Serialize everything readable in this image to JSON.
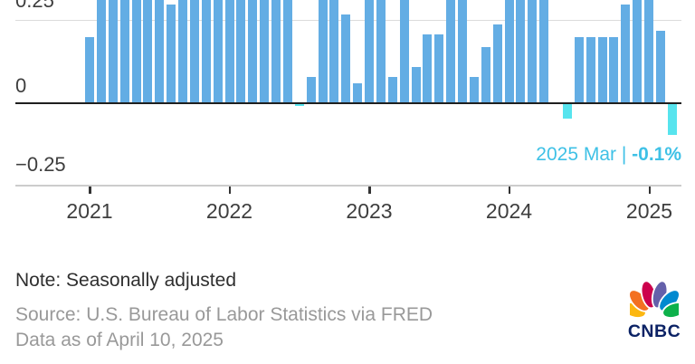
{
  "chart": {
    "y_axis": {
      "labels": [
        "0.25",
        "0",
        "−0.25"
      ]
    },
    "x_axis": {
      "years": [
        "2021",
        "2022",
        "2023",
        "2024",
        "2025"
      ]
    },
    "annotation": {
      "prefix": "2025 Mar | ",
      "value": "-0.1%"
    },
    "colors": {
      "bar_positive": "#63ade4",
      "bar_negative": "#57e4ee",
      "annotation_text": "#3fc1e6",
      "zero_axis": "#1f1f1f",
      "gridline": "#dcdcdc",
      "axis_label_text": "#3e3e3e"
    }
  },
  "chart_data": {
    "type": "bar",
    "x": [
      "2021-01",
      "2021-02",
      "2021-03",
      "2021-04",
      "2021-05",
      "2021-06",
      "2021-07",
      "2021-08",
      "2021-09",
      "2021-10",
      "2021-11",
      "2021-12",
      "2022-01",
      "2022-02",
      "2022-03",
      "2022-04",
      "2022-05",
      "2022-06",
      "2022-07",
      "2022-08",
      "2022-09",
      "2022-10",
      "2022-11",
      "2022-12",
      "2023-01",
      "2023-02",
      "2023-03",
      "2023-04",
      "2023-05",
      "2023-06",
      "2023-07",
      "2023-08",
      "2023-09",
      "2023-10",
      "2023-11",
      "2023-12",
      "2024-01",
      "2024-02",
      "2024-03",
      "2024-04",
      "2024-05",
      "2024-06",
      "2024-07",
      "2024-08",
      "2024-09",
      "2024-10",
      "2024-11",
      "2024-12",
      "2025-01",
      "2025-02",
      "2025-03"
    ],
    "values": [
      0.2,
      0.4,
      0.6,
      0.6,
      0.7,
      0.9,
      0.5,
      0.3,
      0.4,
      0.9,
      0.7,
      0.6,
      0.6,
      0.7,
      1.2,
      0.4,
      0.9,
      1.2,
      -0.01,
      0.08,
      0.4,
      0.5,
      0.27,
      0.06,
      0.5,
      0.4,
      0.08,
      0.5,
      0.11,
      0.21,
      0.21,
      0.5,
      0.4,
      0.08,
      0.17,
      0.24,
      0.5,
      0.4,
      0.4,
      0.4,
      0.0,
      -0.05,
      0.2,
      0.2,
      0.2,
      0.2,
      0.3,
      0.4,
      0.5,
      0.22,
      -0.1
    ],
    "unit": "%",
    "gridlines": [
      0.25,
      0,
      -0.25
    ],
    "visible_ylim": [
      -0.28,
      0.32
    ],
    "xlabel": "",
    "ylabel": "",
    "last_point_label": "2025 Mar | -0.1%",
    "negative_bars_highlighted": true
  },
  "footer": {
    "note": "Note: Seasonally adjusted",
    "source": "Source: U.S. Bureau of Labor Statistics via FRED",
    "data_as_of": "Data as of April 10, 2025"
  },
  "logo": {
    "wordmark": "CNBC",
    "wordmark_color": "#0b2265",
    "peacock_colors": [
      "#fcb711",
      "#f37021",
      "#cc004c",
      "#6460aa",
      "#0089d0",
      "#0db14b"
    ]
  }
}
